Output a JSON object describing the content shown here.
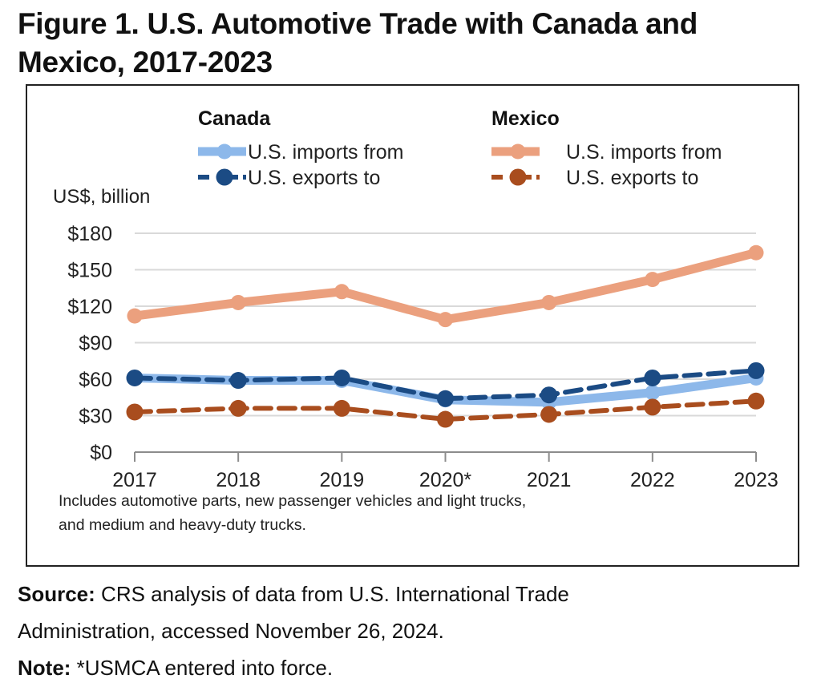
{
  "figure": {
    "title_line1": "Figure 1. U.S. Automotive Trade with Canada and",
    "title_line2": "Mexico, 2017-2023"
  },
  "chart_data": {
    "type": "line",
    "title": "Figure 1. U.S. Automotive Trade with Canada and Mexico, 2017-2023",
    "ylabel": "US$, billion",
    "xlabel": "",
    "x": [
      "2017",
      "2018",
      "2019",
      "2020*",
      "2021",
      "2022",
      "2023"
    ],
    "ylim": [
      0,
      180
    ],
    "yticks": [
      0,
      30,
      60,
      90,
      120,
      150,
      180
    ],
    "ytick_labels": [
      "$0",
      "$30",
      "$60",
      "$90",
      "$120",
      "$150",
      "$180"
    ],
    "grid": true,
    "legend_placement": "top",
    "legend_groups": [
      {
        "name": "Canada",
        "entries": [
          "U.S. imports from",
          "U.S. exports to"
        ]
      },
      {
        "name": "Mexico",
        "entries": [
          "U.S. imports from",
          "U.S. exports to"
        ]
      }
    ],
    "series": [
      {
        "name": "Canada - U.S. imports from",
        "group": "Canada",
        "label": "U.S. imports from",
        "style": "solid-thick",
        "color": "#8DB8EA",
        "values": [
          61,
          59,
          59,
          43,
          41,
          49,
          61
        ]
      },
      {
        "name": "Canada - U.S. exports to",
        "group": "Canada",
        "label": "U.S. exports to",
        "style": "dashed",
        "color": "#1B4B84",
        "values": [
          61,
          59,
          61,
          44,
          47,
          61,
          67
        ]
      },
      {
        "name": "Mexico - U.S. imports from",
        "group": "Mexico",
        "label": "U.S. imports from",
        "style": "solid-thick",
        "color": "#EBA07E",
        "values": [
          112,
          123,
          132,
          109,
          123,
          142,
          164
        ]
      },
      {
        "name": "Mexico - U.S. exports to",
        "group": "Mexico",
        "label": "U.S. exports to",
        "style": "dashed",
        "color": "#A94D1E",
        "values": [
          33,
          36,
          36,
          27,
          31,
          37,
          42
        ]
      }
    ],
    "annotation_line1": "Includes automotive parts, new passenger vehicles and light trucks,",
    "annotation_line2": "and medium  and heavy-duty trucks."
  },
  "footer": {
    "source_label": "Source:",
    "source_text_line1": " CRS analysis of data from U.S. International Trade",
    "source_text_line2": "Administration, accessed November 26, 2024.",
    "note_label": "Note:",
    "note_text": " *USMCA entered into force."
  }
}
